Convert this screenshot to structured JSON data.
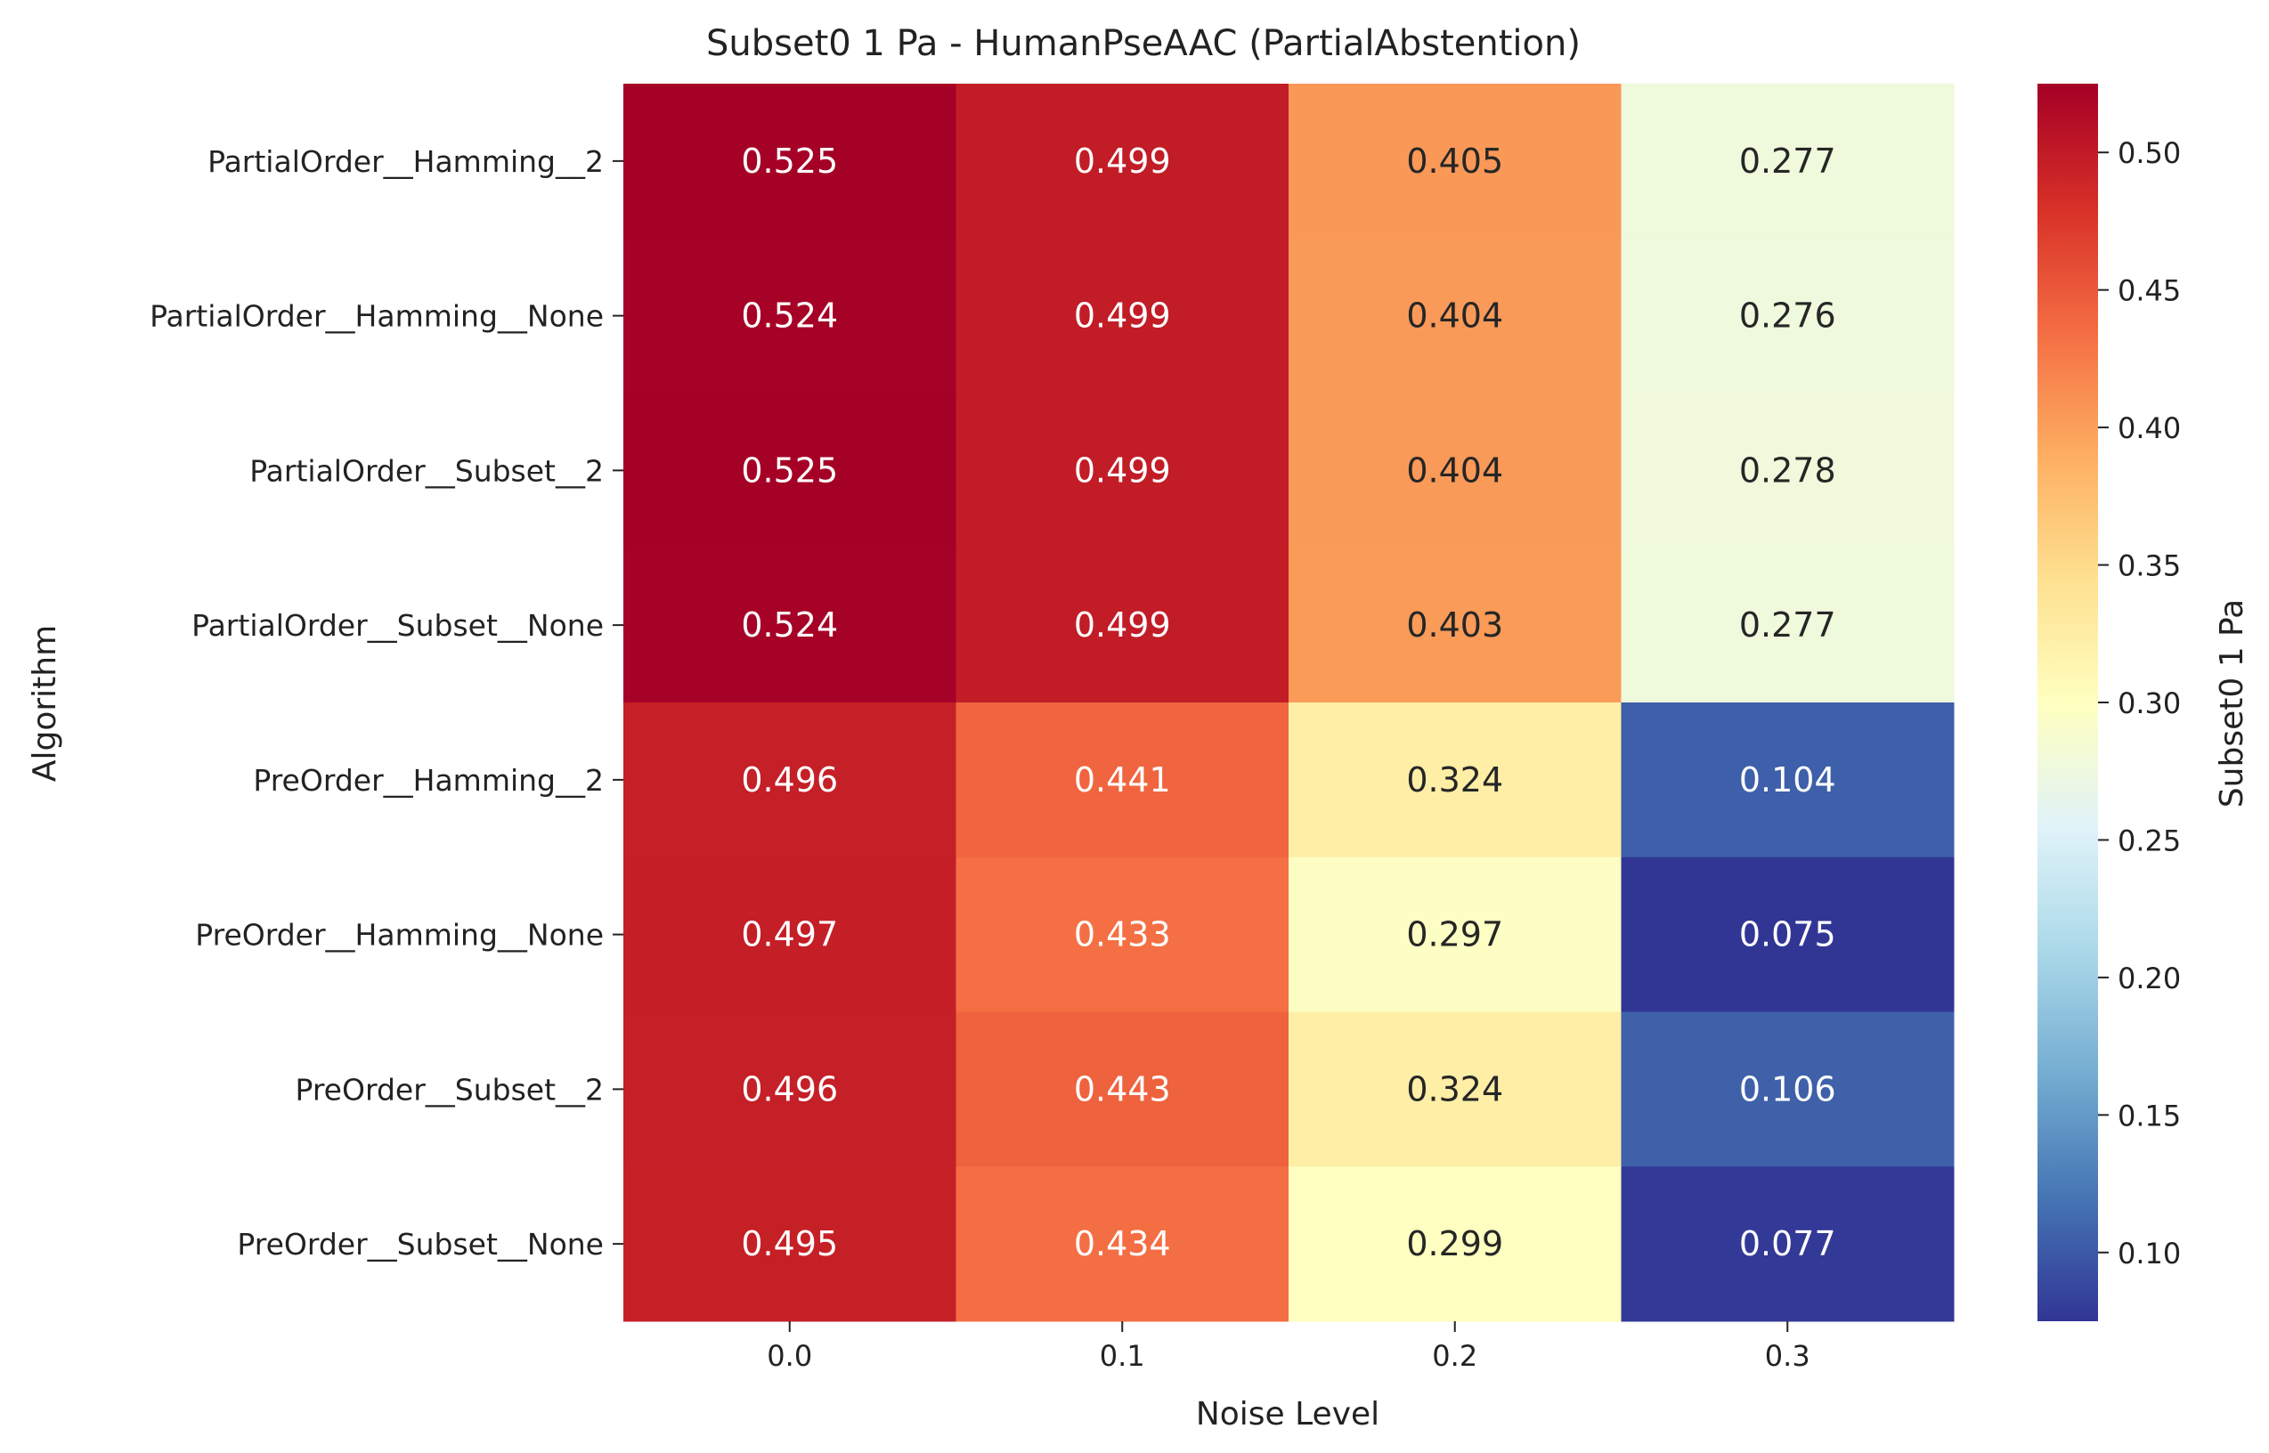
{
  "chart_data": {
    "type": "heatmap",
    "title": "Subset0 1 Pa - HumanPseAAC (PartialAbstention)",
    "xlabel": "Noise Level",
    "ylabel": "Algorithm",
    "x_categories": [
      "0.0",
      "0.1",
      "0.2",
      "0.3"
    ],
    "y_categories": [
      "PartialOrder__Hamming__2",
      "PartialOrder__Hamming__None",
      "PartialOrder__Subset__2",
      "PartialOrder__Subset__None",
      "PreOrder__Hamming__2",
      "PreOrder__Hamming__None",
      "PreOrder__Subset__2",
      "PreOrder__Subset__None"
    ],
    "values": [
      [
        0.525,
        0.499,
        0.405,
        0.277
      ],
      [
        0.524,
        0.499,
        0.404,
        0.276
      ],
      [
        0.525,
        0.499,
        0.404,
        0.278
      ],
      [
        0.524,
        0.499,
        0.403,
        0.277
      ],
      [
        0.496,
        0.441,
        0.324,
        0.104
      ],
      [
        0.497,
        0.433,
        0.297,
        0.075
      ],
      [
        0.496,
        0.443,
        0.324,
        0.106
      ],
      [
        0.495,
        0.434,
        0.299,
        0.077
      ]
    ],
    "colorbar": {
      "label": "Subset0 1 Pa",
      "ticks": [
        "0.10",
        "0.15",
        "0.20",
        "0.25",
        "0.30",
        "0.35",
        "0.40",
        "0.45",
        "0.50"
      ],
      "range": [
        0.075,
        0.525
      ],
      "colormap": "RdYlBu_r",
      "colors": [
        "#313695",
        "#4575b4",
        "#74add1",
        "#abd9e9",
        "#e0f3f8",
        "#ffffbf",
        "#fee090",
        "#fdae61",
        "#f46d43",
        "#d73027",
        "#a50026"
      ]
    }
  }
}
